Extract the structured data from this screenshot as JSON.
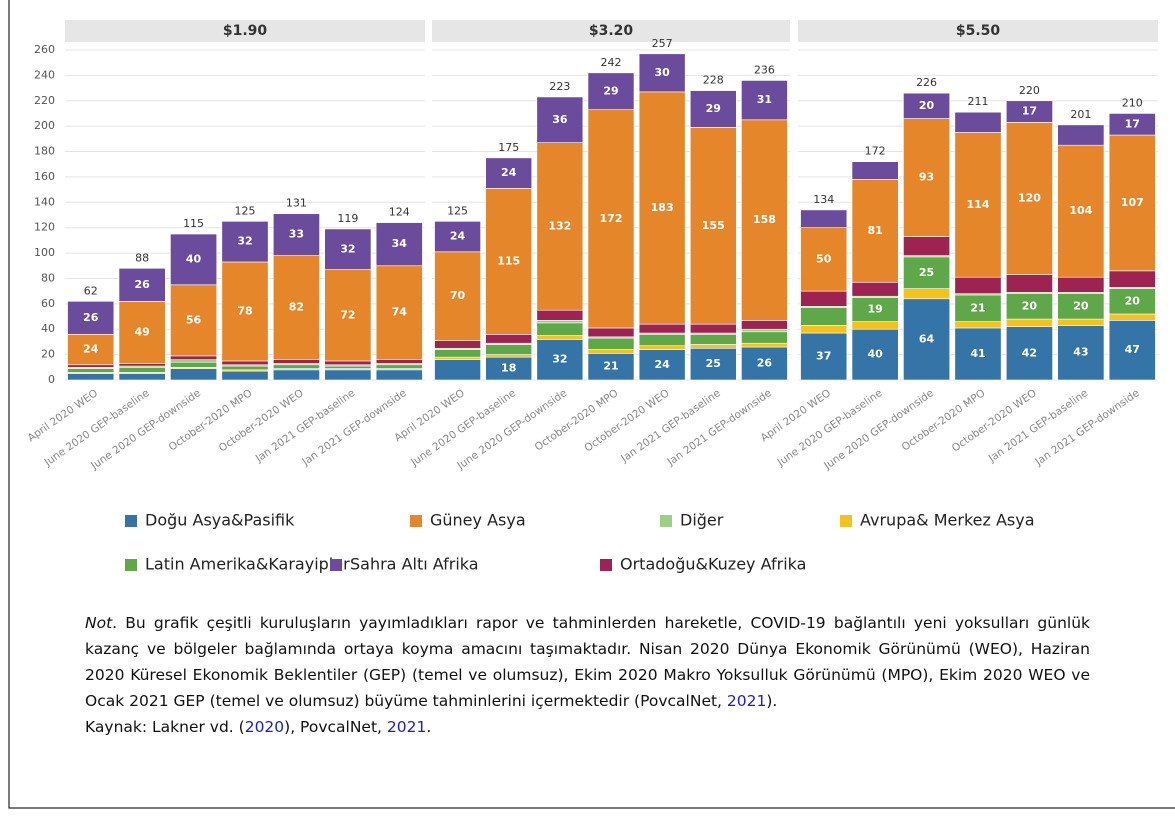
{
  "chart_data": {
    "type": "bar",
    "stacked": true,
    "grid": true,
    "ylim": [
      0,
      260
    ],
    "yticks": [
      0,
      20,
      40,
      60,
      80,
      100,
      120,
      140,
      160,
      180,
      200,
      220,
      240,
      260
    ],
    "categories": [
      "April 2020 WEO",
      "June 2020 GEP-baseline",
      "June 2020 GEP-downside",
      "October-2020 MPO",
      "October-2020 WEO",
      "Jan 2021 GEP-baseline",
      "Jan 2021 GEP-downside"
    ],
    "panels": [
      {
        "title": "$1.90",
        "totals": [
          62,
          88,
          115,
          125,
          131,
          119,
          124
        ]
      },
      {
        "title": "$3.20",
        "totals": [
          125,
          175,
          223,
          242,
          257,
          228,
          236
        ]
      },
      {
        "title": "$5.50",
        "totals": [
          134,
          172,
          226,
          211,
          220,
          201,
          210
        ]
      }
    ],
    "series": [
      {
        "name": "Doğu Asya&Pasifik",
        "color": "#3474a6",
        "values": [
          [
            5,
            5,
            9,
            7,
            8,
            8,
            8
          ],
          [
            16,
            18,
            32,
            21,
            24,
            25,
            26
          ],
          [
            37,
            40,
            64,
            41,
            42,
            43,
            47
          ]
        ]
      },
      {
        "name": "Avrupa& Merkez Asya",
        "color": "#f5c21b",
        "values": [
          [
            1,
            1,
            1,
            1,
            1,
            1,
            1
          ],
          [
            2,
            2,
            3,
            3,
            3,
            3,
            3
          ],
          [
            6,
            6,
            8,
            5,
            6,
            5,
            5
          ]
        ]
      },
      {
        "name": "Latin Amerika&Karayipler",
        "color": "#5ea84a",
        "values": [
          [
            3,
            4,
            4,
            3,
            3,
            2,
            3
          ],
          [
            6,
            8,
            10,
            9,
            9,
            8,
            9
          ],
          [
            14,
            19,
            25,
            21,
            20,
            20,
            20
          ]
        ]
      },
      {
        "name": "Diğer",
        "color": "#9ccf86",
        "values": [
          [
            1,
            1,
            2,
            1,
            1,
            1,
            1
          ],
          [
            1,
            1,
            2,
            1,
            1,
            1,
            2
          ],
          [
            1,
            1,
            1,
            1,
            1,
            1,
            1
          ]
        ]
      },
      {
        "name": "Ortadoğu&Kuzey Afrika",
        "color": "#9c2352",
        "values": [
          [
            2,
            2,
            3,
            3,
            3,
            3,
            3
          ],
          [
            6,
            7,
            8,
            7,
            7,
            7,
            7
          ],
          [
            12,
            11,
            15,
            13,
            14,
            12,
            13
          ]
        ]
      },
      {
        "name": "Güney Asya",
        "color": "#e6862b",
        "values": [
          [
            24,
            49,
            56,
            78,
            82,
            72,
            74
          ],
          [
            70,
            115,
            132,
            172,
            183,
            155,
            158
          ],
          [
            50,
            81,
            93,
            114,
            120,
            104,
            107
          ]
        ]
      },
      {
        "name": "Sahra Altı Afrika",
        "color": "#6a4b9c",
        "values": [
          [
            26,
            26,
            40,
            32,
            33,
            32,
            34
          ],
          [
            24,
            24,
            36,
            29,
            30,
            29,
            31
          ],
          [
            14,
            14,
            20,
            16,
            17,
            16,
            17
          ]
        ]
      }
    ]
  },
  "note": {
    "label": "Not",
    "body": ". Bu grafik çeşitli kuruluşların yayımladıkları rapor ve tahminlerden hareketle, COVID-19 bağlantılı yeni yoksulları günlük kazanç ve bölgeler bağlamında ortaya koyma amacını taşımaktadır. Nisan 2020 Dünya Ekonomik Görünümü (WEO), Haziran 2020 Küresel Ekonomik Beklentiler (GEP) (temel ve olumsuz), Ekim 2020 Makro Yoksulluk Görünümü (MPO), Ekim 2020 WEO ve Ocak 2021 GEP (temel ve olumsuz) büyüme tahminlerini içermektedir (PovcalNet, ",
    "link": "2021",
    "end": ")."
  },
  "source": {
    "pre": "Kaynak: Lakner vd. (",
    "link1": "2020",
    "mid": "), PovcalNet, ",
    "link2": "2021",
    "end": "."
  }
}
